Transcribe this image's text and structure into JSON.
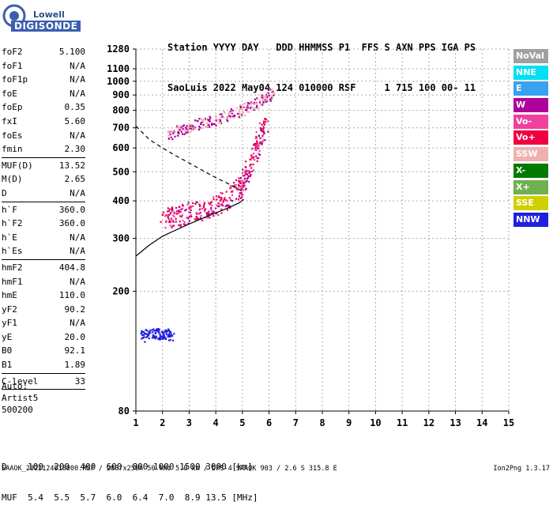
{
  "logo": {
    "line1": "Lowell",
    "line2": "DIGISONDE"
  },
  "header": {
    "row1": "Station YYYY DAY   DDD HHMMSS P1  FFS S AXN PPS IGA PS",
    "row2": "SaoLuis 2022 May04 124 010000 RSF     1 715 100 00- 11"
  },
  "params": [
    {
      "name": "foF2",
      "value": "5.100"
    },
    {
      "name": "foF1",
      "value": "N/A"
    },
    {
      "name": "foF1p",
      "value": "N/A"
    },
    {
      "name": "foE",
      "value": "N/A"
    },
    {
      "name": "foEp",
      "value": "0.35"
    },
    {
      "name": "fxI",
      "value": "5.60"
    },
    {
      "name": "foEs",
      "value": "N/A"
    },
    {
      "name": "fmin",
      "value": "2.30"
    },
    {
      "sep": true
    },
    {
      "name": "MUF(D)",
      "value": "13.52"
    },
    {
      "name": "M(D)",
      "value": "2.65"
    },
    {
      "name": "D",
      "value": "N/A"
    },
    {
      "sep": true
    },
    {
      "name": "h`F",
      "value": "360.0"
    },
    {
      "name": "h`F2",
      "value": "360.0"
    },
    {
      "name": "h`E",
      "value": "N/A"
    },
    {
      "name": "h`Es",
      "value": "N/A"
    },
    {
      "sep": true
    },
    {
      "name": "hmF2",
      "value": "404.8"
    },
    {
      "name": "hmF1",
      "value": "N/A"
    },
    {
      "name": "hmE",
      "value": "110.0"
    },
    {
      "name": "yF2",
      "value": "90.2"
    },
    {
      "name": "yF1",
      "value": "N/A"
    },
    {
      "name": "yE",
      "value": "20.0"
    },
    {
      "name": "B0",
      "value": "92.1"
    },
    {
      "name": "B1",
      "value": "1.89"
    },
    {
      "sep": true
    },
    {
      "name": "C-level",
      "value": "33"
    },
    {
      "sep": true
    }
  ],
  "auto": {
    "line1": "Auto:",
    "line2": "Artist5",
    "line3": "500200"
  },
  "legend": [
    {
      "label": "NoVal",
      "color": "#a0a0a0"
    },
    {
      "label": "NNE",
      "color": "#00e0f0"
    },
    {
      "label": "E",
      "color": "#3aa0f0"
    },
    {
      "label": "W",
      "color": "#b0009a"
    },
    {
      "label": "Vo-",
      "color": "#f040a0"
    },
    {
      "label": "Vo+",
      "color": "#f00040"
    },
    {
      "label": "SSW",
      "color": "#f0b0b0"
    },
    {
      "label": "X-",
      "color": "#007a00"
    },
    {
      "label": "X+",
      "color": "#70b050"
    },
    {
      "label": "SSE",
      "color": "#d0d000"
    },
    {
      "label": "NNW",
      "color": "#2020e0"
    }
  ],
  "dmuf": {
    "row1": "D    100  200  400  600  800 1000 1500 3000 [km]",
    "row2": "MUF  5.4  5.5  5.7  6.0  6.4  7.0  8.9 13.5 [MHz]"
  },
  "footer": {
    "left": "SAAOK_2022124010000.RSF / 280fx256h 50 kHz 5.0 km / DPS-4 SAAOK 903 / 2.6 S 315.8 E",
    "right": "Ion2Png 1.3.17"
  },
  "chart_data": {
    "type": "scatter",
    "x_ticks": [
      1,
      2,
      3,
      4,
      5,
      6,
      7,
      8,
      9,
      10,
      11,
      12,
      13,
      14,
      15
    ],
    "y_ticks": [
      80,
      200,
      300,
      400,
      500,
      600,
      700,
      800,
      900,
      1000,
      1100,
      1280
    ],
    "xlim": [
      1,
      15
    ],
    "ylim": [
      80,
      1280
    ],
    "y_scale": "logarithmic",
    "grid": true,
    "series": [
      {
        "label": "O-trace (Vo+/Vo-)",
        "color_keys": [
          "Vo+",
          "Vo-",
          "W"
        ],
        "points": [
          [
            2.0,
            360
          ],
          [
            2.3,
            365
          ],
          [
            2.6,
            370
          ],
          [
            3.0,
            378
          ],
          [
            3.4,
            385
          ],
          [
            3.8,
            395
          ],
          [
            4.2,
            410
          ],
          [
            4.6,
            430
          ],
          [
            4.9,
            460
          ],
          [
            5.1,
            500
          ],
          [
            5.3,
            550
          ],
          [
            5.5,
            620
          ],
          [
            5.7,
            690
          ],
          [
            5.85,
            750
          ]
        ]
      },
      {
        "label": "SSW 2nd hop",
        "color_keys": [
          "SSW",
          "W"
        ],
        "points": [
          [
            2.2,
            680
          ],
          [
            2.6,
            700
          ],
          [
            3.0,
            720
          ],
          [
            3.5,
            740
          ],
          [
            4.0,
            760
          ],
          [
            4.5,
            790
          ],
          [
            5.0,
            820
          ],
          [
            5.4,
            850
          ],
          [
            5.8,
            890
          ],
          [
            6.1,
            940
          ]
        ]
      },
      {
        "label": "NNW low",
        "color_keys": [
          "NNW"
        ],
        "points": [
          [
            1.2,
            145
          ],
          [
            1.5,
            147
          ],
          [
            1.8,
            148
          ],
          [
            2.1,
            147
          ],
          [
            2.3,
            146
          ]
        ]
      },
      {
        "label": "hmF2 profile",
        "type": "line",
        "points": [
          [
            1.0,
            262
          ],
          [
            1.5,
            285
          ],
          [
            2.0,
            305
          ],
          [
            2.5,
            320
          ],
          [
            3.0,
            335
          ],
          [
            3.5,
            350
          ],
          [
            4.0,
            365
          ],
          [
            4.5,
            380
          ],
          [
            4.9,
            395
          ],
          [
            5.05,
            405
          ],
          [
            4.9,
            395
          ]
        ]
      },
      {
        "label": "MUF dashed",
        "type": "line",
        "points": [
          [
            1.0,
            710
          ],
          [
            1.5,
            640
          ],
          [
            2.0,
            600
          ],
          [
            2.5,
            565
          ],
          [
            3.0,
            535
          ],
          [
            3.5,
            505
          ],
          [
            4.0,
            478
          ],
          [
            4.5,
            455
          ],
          [
            5.0,
            430
          ]
        ]
      }
    ]
  }
}
